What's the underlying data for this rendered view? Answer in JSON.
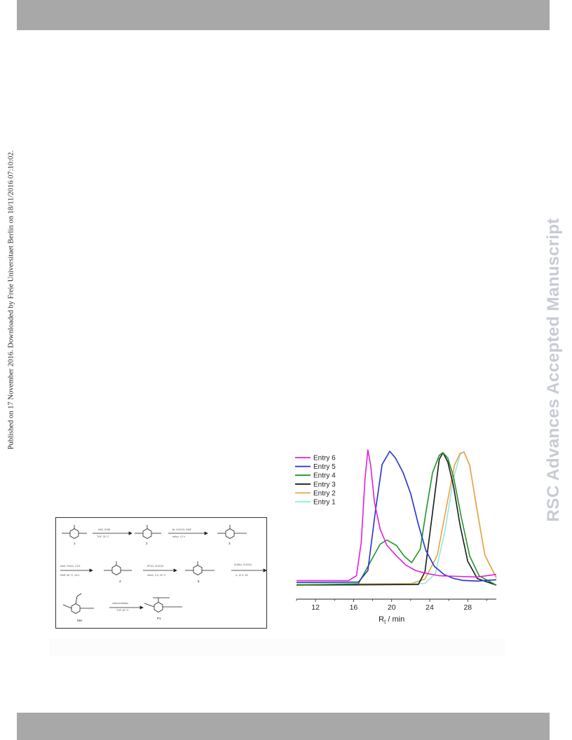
{
  "page": {
    "side_note": "Published on 17 November 2016. Downloaded by Freie Universitaet Berlin on 18/11/2016 07:10:02.",
    "watermark": "RSC Advances Accepted Manuscript",
    "colors": {
      "band": "#a8a8a8",
      "watermark": "#c8cbd3"
    }
  },
  "scheme": {
    "compound_numbers": [
      "1",
      "2",
      "3",
      "4",
      "5",
      "MH",
      "P1"
    ],
    "rendering": "illegible reaction scheme reproduced as graphics"
  },
  "chart_data": {
    "type": "line",
    "xlabel_main": "R",
    "xlabel_sub": "t",
    "xlabel_unit": " / min",
    "ylabel": "",
    "xlim": [
      10,
      31
    ],
    "x_ticks": [
      12,
      16,
      20,
      24,
      28
    ],
    "y_ticks_shown": false,
    "legend_position": "top-left",
    "series": [
      {
        "name": "Entry 6",
        "color": "#e020d8",
        "x": [
          10,
          15.5,
          16.3,
          16.8,
          17.2,
          17.5,
          17.8,
          18.2,
          18.8,
          19.5,
          20.5,
          21.5,
          22.5,
          23.5,
          25,
          27,
          29,
          31
        ],
        "y": [
          0.013,
          0.014,
          0.05,
          0.3,
          0.78,
          1.0,
          0.88,
          0.6,
          0.4,
          0.28,
          0.2,
          0.13,
          0.09,
          0.07,
          0.05,
          0.045,
          0.04,
          0.06
        ]
      },
      {
        "name": "Entry 5",
        "color": "#2233cc",
        "x": [
          10,
          16.5,
          17.5,
          18.3,
          19.0,
          19.8,
          20.4,
          21.2,
          22.0,
          22.8,
          23.6,
          24.5,
          25.5,
          26.5,
          27.5,
          29,
          31
        ],
        "y": [
          0.01,
          0.012,
          0.1,
          0.55,
          0.9,
          1.0,
          0.95,
          0.84,
          0.68,
          0.45,
          0.25,
          0.13,
          0.07,
          0.04,
          0.025,
          0.02,
          0.03
        ]
      },
      {
        "name": "Entry 4",
        "color": "#22922a",
        "x": [
          10,
          16.5,
          17.8,
          18.8,
          19.5,
          20.5,
          21.3,
          22.1,
          23.0,
          23.6,
          24.3,
          25.0,
          25.4,
          25.9,
          26.5,
          27.3,
          28.2,
          29.2,
          31
        ],
        "y": [
          0.0,
          0.01,
          0.18,
          0.31,
          0.34,
          0.3,
          0.22,
          0.17,
          0.27,
          0.55,
          0.85,
          0.98,
          1.0,
          0.96,
          0.82,
          0.52,
          0.22,
          0.07,
          0.0
        ]
      },
      {
        "name": "Entry 3",
        "color": "#1a1a1a",
        "x": [
          10,
          22.8,
          23.5,
          24.3,
          25.0,
          25.4,
          25.9,
          26.5,
          27.2,
          28.0,
          29.0,
          31
        ],
        "y": [
          0.0,
          0.005,
          0.1,
          0.55,
          0.95,
          1.0,
          0.93,
          0.75,
          0.45,
          0.18,
          0.05,
          0.0
        ]
      },
      {
        "name": "Entry 2",
        "color": "#f0a040",
        "x": [
          10,
          22.0,
          23.5,
          24.8,
          25.8,
          26.6,
          27.2,
          27.6,
          28.2,
          29.0,
          29.8,
          31
        ],
        "y": [
          0.0,
          0.005,
          0.04,
          0.22,
          0.6,
          0.9,
          0.99,
          1.0,
          0.9,
          0.55,
          0.22,
          0.05
        ]
      },
      {
        "name": "Entry 1",
        "color": "#8ee8e0",
        "x": [
          10,
          23.5,
          24.6,
          25.6,
          26.5,
          27.2,
          27.6,
          28.2,
          29.0,
          29.8,
          31
        ],
        "y": [
          0.0,
          0.005,
          0.08,
          0.4,
          0.8,
          0.98,
          1.0,
          0.9,
          0.55,
          0.22,
          0.05
        ]
      }
    ]
  }
}
